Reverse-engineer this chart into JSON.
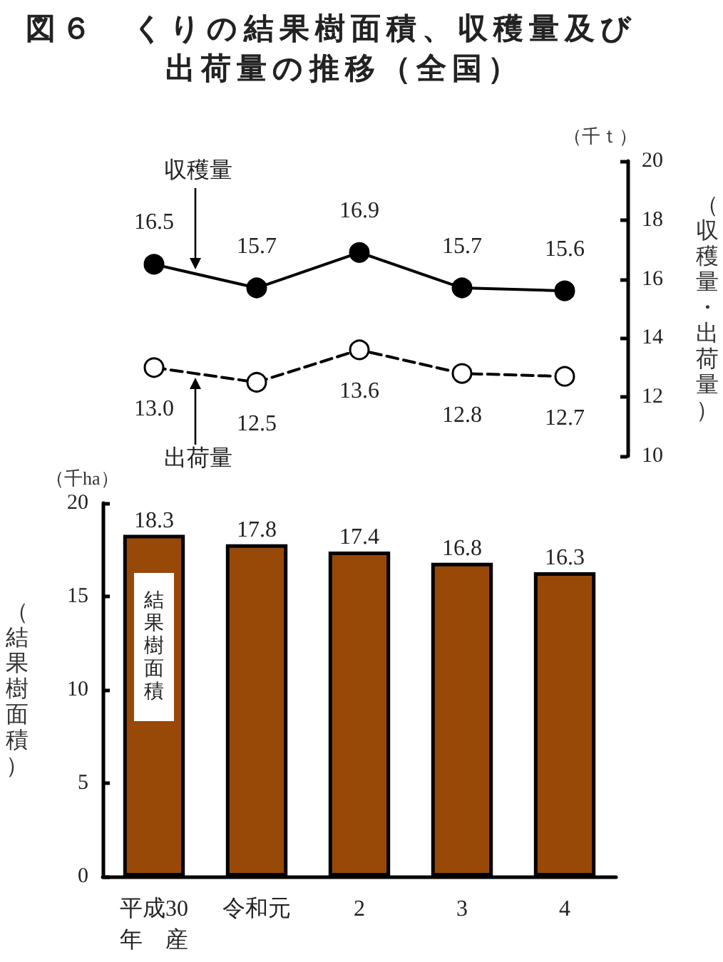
{
  "chart_data": [
    {
      "type": "line",
      "title": "図６　くりの結果樹面積、収穫量及び出荷量の推移（全国）",
      "ylabel": "（収穫量・出荷量）",
      "annotations": [
        "（千ｔ）"
      ],
      "categories": [
        null,
        null,
        null,
        null,
        null
      ],
      "series": [
        {
          "name": "収穫量",
          "color": "#000000",
          "values": [
            16.5,
            15.7,
            16.9,
            15.7,
            15.6
          ],
          "value_labels": [
            "16.5",
            "15.7",
            "16.9",
            "15.7",
            "15.6"
          ],
          "line_style": "solid"
        },
        {
          "name": "出荷量",
          "color": "#000000",
          "values": [
            13.0,
            12.5,
            13.6,
            12.8,
            12.7
          ],
          "value_labels": [
            "13.0",
            "12.5",
            "13.6",
            "12.8",
            "12.7"
          ],
          "line_style": "dashed"
        }
      ],
      "ylim": [
        10,
        20
      ],
      "yticks": [
        10,
        12,
        14,
        16,
        18,
        20
      ],
      "tick_labels": "y",
      "marker": "circle",
      "grid": false,
      "legend": false
    },
    {
      "type": "bar",
      "ylabel": "（結果樹面積）",
      "annotations": [
        "（千ha）"
      ],
      "categories": [
        "平成30\n年　産",
        "令和元",
        "2",
        "3",
        "4"
      ],
      "series": [
        {
          "name": "結果樹面積",
          "color": "#984807",
          "values": [
            18.3,
            17.8,
            17.4,
            16.8,
            16.3
          ]
        }
      ],
      "ylim": [
        0,
        20
      ],
      "yticks": [
        0,
        5,
        10,
        15,
        20
      ],
      "data_labels": true,
      "grid": false,
      "legend": false
    }
  ]
}
